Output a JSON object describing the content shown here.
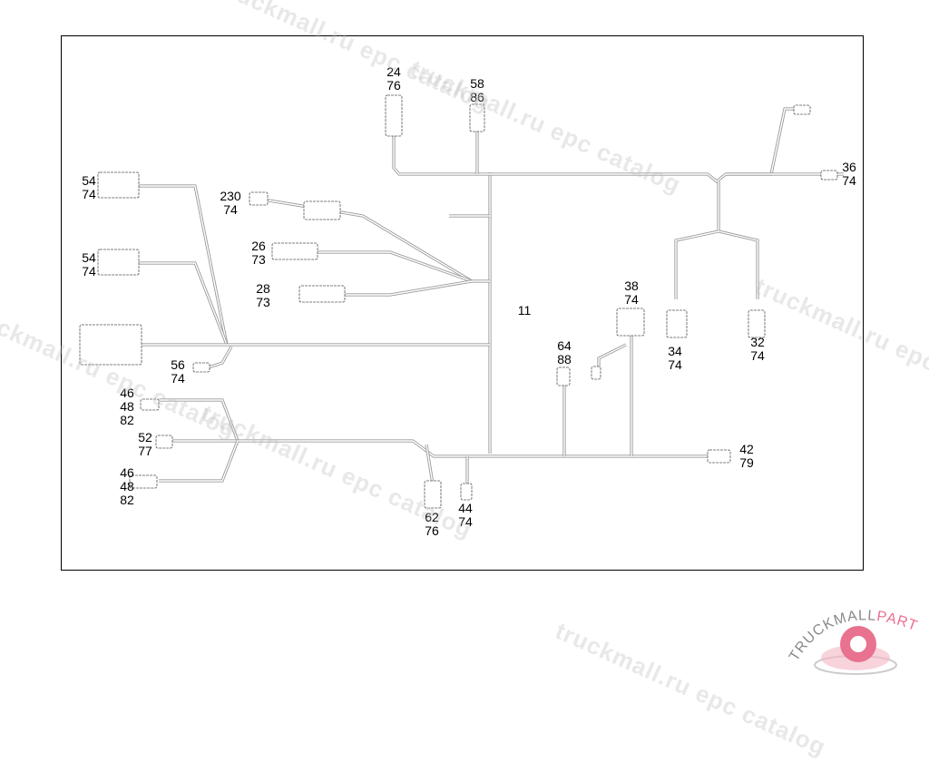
{
  "diagram": {
    "callouts": [
      {
        "lines": [
          "24",
          "76"
        ]
      },
      {
        "lines": [
          "58",
          "86"
        ]
      },
      {
        "lines": [
          "54",
          "74"
        ]
      },
      {
        "lines": [
          "230",
          "74"
        ]
      },
      {
        "lines": [
          "26",
          "73"
        ]
      },
      {
        "lines": [
          "28",
          "73"
        ]
      },
      {
        "lines": [
          "54",
          "74"
        ]
      },
      {
        "lines": [
          "56",
          "74"
        ]
      },
      {
        "lines": [
          "46",
          "48",
          "82"
        ]
      },
      {
        "lines": [
          "52",
          "77"
        ]
      },
      {
        "lines": [
          "46",
          "48",
          "82"
        ]
      },
      {
        "lines": [
          "62",
          "76"
        ]
      },
      {
        "lines": [
          "44",
          "74"
        ]
      },
      {
        "lines": [
          "64",
          "88"
        ]
      },
      {
        "lines": [
          "38",
          "74"
        ]
      },
      {
        "lines": [
          "34",
          "74"
        ]
      },
      {
        "lines": [
          "32",
          "74"
        ]
      },
      {
        "lines": [
          "36",
          "74"
        ]
      },
      {
        "lines": [
          "42",
          "79"
        ]
      },
      {
        "lines": [
          "11"
        ]
      }
    ]
  },
  "watermark": {
    "text": "truckmall.ru epc catalog"
  },
  "logo": {
    "text_a": "TRUCKMALL",
    "text_b": "PARTS",
    "colors": {
      "grey": "#8a8a8a",
      "pink": "#e8728f"
    }
  }
}
